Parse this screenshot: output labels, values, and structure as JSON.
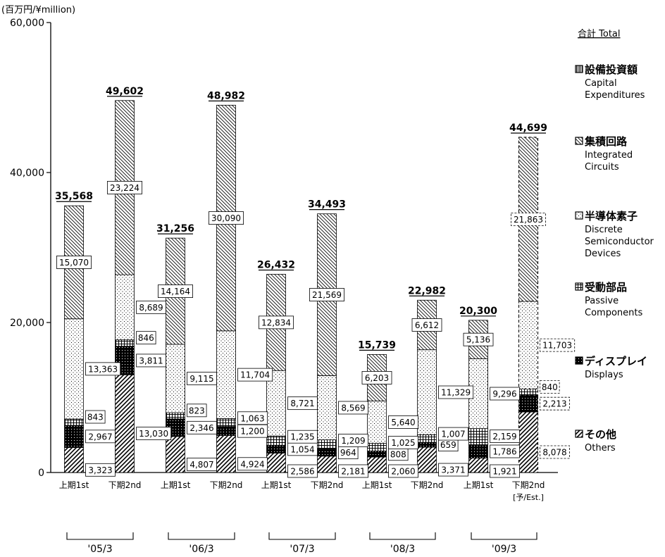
{
  "chart_data": {
    "type": "bar",
    "stacked": true,
    "unit_label": "(百万円/¥million)",
    "yticks": [
      "0",
      "20,000",
      "40,000",
      "60,000"
    ],
    "ylim": [
      0,
      60000
    ],
    "total_header": "合計 Total",
    "categories": [
      "上期1st",
      "下期2nd",
      "上期1st",
      "下期2nd",
      "上期1st",
      "下期2nd",
      "上期1st",
      "下期2nd",
      "上期1st",
      "下期2nd"
    ],
    "estimate_note": "[予/Est.]",
    "periods": [
      "'05/3",
      "'06/3",
      "'07/3",
      "'08/3",
      "'09/3"
    ],
    "totals": [
      35568,
      49602,
      31256,
      48982,
      26432,
      34493,
      15739,
      22982,
      20300,
      44699
    ],
    "total_labels": [
      "35,568",
      "49,602",
      "31,256",
      "48,982",
      "26,432",
      "34,493",
      "15,739",
      "22,982",
      "20,300",
      "44,699"
    ],
    "series": [
      {
        "name": "その他 Others",
        "values": [
          3323,
          13030,
          4807,
          4924,
          2586,
          2181,
          2060,
          3371,
          1921,
          8078
        ],
        "labels": [
          "3,323",
          "13,030",
          "4,807",
          "4,924",
          "2,586",
          "2,181",
          "2,060",
          "3,371",
          "1,921",
          "8,078"
        ]
      },
      {
        "name": "ディスプレイ Displays",
        "values": [
          2967,
          3811,
          2346,
          1200,
          1054,
          964,
          808,
          659,
          1786,
          2213
        ],
        "labels": [
          "2,967",
          "3,811",
          "2,346",
          "1,200",
          "1,054",
          "964",
          "808",
          "659",
          "1,786",
          "2,213"
        ]
      },
      {
        "name": "受動部品 Passive Components",
        "values": [
          843,
          846,
          823,
          1063,
          1235,
          1209,
          1025,
          1007,
          2159,
          840
        ],
        "labels": [
          "843",
          "846",
          "823",
          "1,063",
          "1,235",
          "1,209",
          "1,025",
          "1,007",
          "2,159",
          "840"
        ]
      },
      {
        "name": "半導体素子 Discrete Semiconductor Devices",
        "values": [
          13363,
          8689,
          9115,
          11704,
          8721,
          8569,
          5640,
          11329,
          9296,
          11703
        ],
        "labels": [
          "13,363",
          "8,689",
          "9,115",
          "11,704",
          "8,721",
          "8,569",
          "5,640",
          "11,329",
          "9,296",
          "11,703"
        ]
      },
      {
        "name": "集積回路 Integrated Circuits",
        "values": [
          15070,
          23224,
          14164,
          30090,
          12834,
          21569,
          6203,
          6612,
          5136,
          21863
        ],
        "labels": [
          "15,070",
          "23,224",
          "14,164",
          "30,090",
          "12,834",
          "21,569",
          "6,203",
          "6,612",
          "5,136",
          "21,863"
        ]
      }
    ],
    "legend": [
      {
        "ja": "設備投資額",
        "en": [
          "Capital",
          "Expenditures"
        ],
        "pattern": "capex"
      },
      {
        "ja": "集積回路",
        "en": [
          "Integrated",
          "Circuits"
        ],
        "pattern": "ic"
      },
      {
        "ja": "半導体素子",
        "en": [
          "Discrete",
          "Semiconductor",
          "Devices"
        ],
        "pattern": "discrete"
      },
      {
        "ja": "受動部品",
        "en": [
          "Passive",
          "Components"
        ],
        "pattern": "passive"
      },
      {
        "ja": "ディスプレイ",
        "en": [
          "Displays"
        ],
        "pattern": "display"
      },
      {
        "ja": "その他",
        "en": [
          "Others"
        ],
        "pattern": "others"
      }
    ],
    "legend_position": "right",
    "grid": false,
    "estimate_bar_dashed": true
  }
}
